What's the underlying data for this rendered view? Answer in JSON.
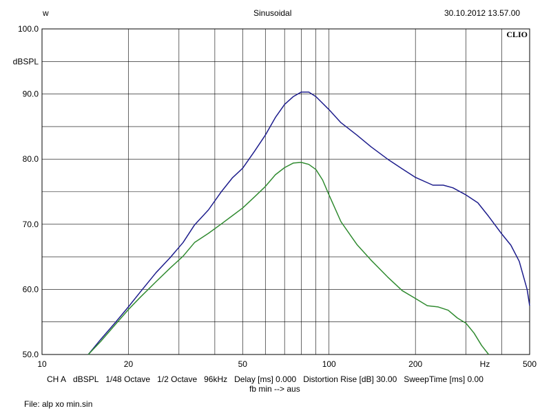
{
  "header": {
    "left": "w",
    "center": "Sinusoidal",
    "right": "30.10.2012 13.57.00"
  },
  "brand": "CLIO",
  "status_items": [
    "CH A",
    "dBSPL",
    "1/48 Octave",
    "1/2 Octave",
    "96kHz",
    "Delay [ms] 0.000",
    "Distortion Rise [dB] 30.00",
    "SweepTime [ms] 0.00"
  ],
  "subline": "fb min --> aus",
  "file": "File: alp xo min.sin",
  "chart_data": {
    "type": "line",
    "xscale": "log",
    "xlim": [
      10,
      500
    ],
    "ylim": [
      50,
      100
    ],
    "x_tick_labels": [
      {
        "value": 10,
        "label": "10"
      },
      {
        "value": 20,
        "label": "20"
      },
      {
        "value": 50,
        "label": "50"
      },
      {
        "value": 100,
        "label": "100"
      },
      {
        "value": 200,
        "label": "200"
      },
      {
        "value": 500,
        "label": "500"
      }
    ],
    "x_unit": "Hz",
    "x_gridlines": [
      20,
      30,
      40,
      50,
      60,
      70,
      80,
      90,
      100,
      200,
      300,
      400
    ],
    "y_tick_labels": [
      {
        "value": 100,
        "label": "100.0"
      },
      {
        "value": 90,
        "label": "90.0"
      },
      {
        "value": 80,
        "label": "80.0"
      },
      {
        "value": 70,
        "label": "70.0"
      },
      {
        "value": 60,
        "label": "60.0"
      },
      {
        "value": 50,
        "label": "50.0"
      }
    ],
    "y_unit": "dBSPL",
    "y_gridlines": [
      55,
      60,
      65,
      70,
      75,
      80,
      85,
      90,
      95
    ],
    "grid": true,
    "series": [
      {
        "color": "#1c1c8c",
        "points": [
          [
            14.5,
            50
          ],
          [
            16,
            52.3
          ],
          [
            18,
            54.9
          ],
          [
            20,
            57.3
          ],
          [
            22,
            59.6
          ],
          [
            25,
            62.6
          ],
          [
            28,
            64.9
          ],
          [
            31,
            67.2
          ],
          [
            34,
            69.9
          ],
          [
            38,
            72.2
          ],
          [
            42,
            74.9
          ],
          [
            46,
            77.1
          ],
          [
            50,
            78.6
          ],
          [
            55,
            81.2
          ],
          [
            60,
            83.7
          ],
          [
            65,
            86.4
          ],
          [
            70,
            88.4
          ],
          [
            75,
            89.6
          ],
          [
            80,
            90.3
          ],
          [
            85,
            90.3
          ],
          [
            90,
            89.6
          ],
          [
            100,
            87.6
          ],
          [
            110,
            85.6
          ],
          [
            125,
            83.7
          ],
          [
            140,
            81.9
          ],
          [
            160,
            80
          ],
          [
            180,
            78.5
          ],
          [
            200,
            77.2
          ],
          [
            230,
            76
          ],
          [
            250,
            76
          ],
          [
            270,
            75.6
          ],
          [
            300,
            74.5
          ],
          [
            330,
            73.3
          ],
          [
            360,
            71.2
          ],
          [
            400,
            68.5
          ],
          [
            430,
            66.8
          ],
          [
            460,
            64.3
          ],
          [
            490,
            60
          ],
          [
            500,
            57.5
          ]
        ]
      },
      {
        "color": "#2f8a2f",
        "points": [
          [
            14.5,
            50
          ],
          [
            16,
            52
          ],
          [
            18,
            54.6
          ],
          [
            20,
            56.9
          ],
          [
            22,
            58.8
          ],
          [
            25,
            61.2
          ],
          [
            28,
            63.3
          ],
          [
            31,
            65.1
          ],
          [
            34,
            67.2
          ],
          [
            38,
            68.6
          ],
          [
            42,
            70
          ],
          [
            46,
            71.3
          ],
          [
            50,
            72.5
          ],
          [
            55,
            74.2
          ],
          [
            60,
            75.8
          ],
          [
            65,
            77.6
          ],
          [
            70,
            78.7
          ],
          [
            75,
            79.4
          ],
          [
            80,
            79.5
          ],
          [
            85,
            79.2
          ],
          [
            90,
            78.4
          ],
          [
            95,
            76.8
          ],
          [
            100,
            74.5
          ],
          [
            110,
            70.4
          ],
          [
            125,
            66.9
          ],
          [
            140,
            64.5
          ],
          [
            160,
            61.9
          ],
          [
            180,
            59.8
          ],
          [
            200,
            58.6
          ],
          [
            220,
            57.5
          ],
          [
            240,
            57.3
          ],
          [
            260,
            56.8
          ],
          [
            280,
            55.6
          ],
          [
            300,
            54.8
          ],
          [
            320,
            53.3
          ],
          [
            340,
            51.4
          ],
          [
            360,
            50
          ]
        ]
      }
    ]
  }
}
